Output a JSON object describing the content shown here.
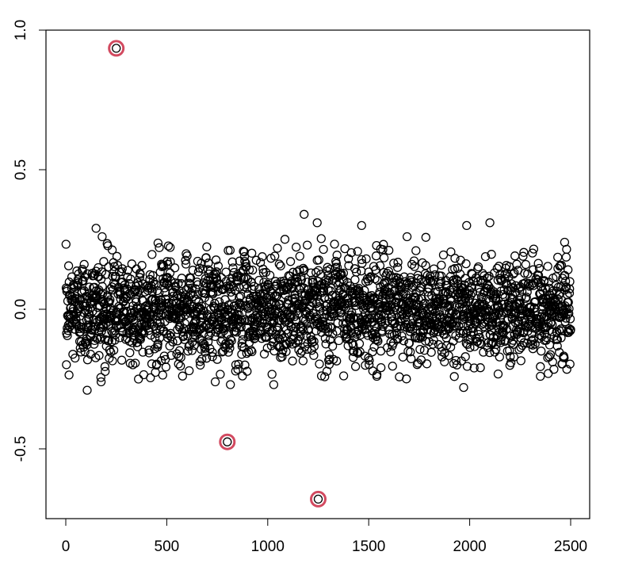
{
  "chart_data": {
    "type": "scatter",
    "title": "",
    "xlabel": "",
    "ylabel": "",
    "xlim": [
      0,
      2500
    ],
    "ylim": [
      -0.75,
      1.0
    ],
    "x_ticks": [
      0,
      500,
      1000,
      1500,
      2000,
      2500
    ],
    "x_tick_labels": [
      "0",
      "500",
      "1000",
      "1500",
      "2000",
      "2500"
    ],
    "y_ticks": [
      -0.5,
      0.0,
      0.5,
      1.0
    ],
    "y_tick_labels": [
      "-0.5",
      "0.0",
      "0.5",
      "1.0"
    ],
    "grid": false,
    "point_color": "#000000",
    "highlight_color": "#d24a60",
    "series": [
      {
        "n_points": 2500,
        "x_range": [
          1,
          2500
        ],
        "bulk_y_range": [
          -0.29,
          0.34
        ],
        "bulk_y_center": 0.0,
        "notable_points": [
          {
            "x": 106,
            "y": -0.29
          },
          {
            "x": 150,
            "y": 0.29
          },
          {
            "x": 175,
            "y": -0.26
          },
          {
            "x": 180,
            "y": 0.26
          },
          {
            "x": 360,
            "y": -0.25
          },
          {
            "x": 740,
            "y": -0.26
          },
          {
            "x": 815,
            "y": -0.27
          },
          {
            "x": 1030,
            "y": -0.27
          },
          {
            "x": 1180,
            "y": 0.34
          },
          {
            "x": 1245,
            "y": 0.31
          },
          {
            "x": 1465,
            "y": 0.3
          },
          {
            "x": 1540,
            "y": -0.24
          },
          {
            "x": 1690,
            "y": 0.26
          },
          {
            "x": 1970,
            "y": -0.28
          },
          {
            "x": 1985,
            "y": 0.3
          },
          {
            "x": 2100,
            "y": 0.31
          },
          {
            "x": 2350,
            "y": -0.24
          },
          {
            "x": 2470,
            "y": 0.24
          }
        ]
      }
    ],
    "highlighted_points": [
      {
        "x": 250,
        "y": 0.935
      },
      {
        "x": 800,
        "y": -0.475
      },
      {
        "x": 1250,
        "y": -0.68
      }
    ]
  }
}
